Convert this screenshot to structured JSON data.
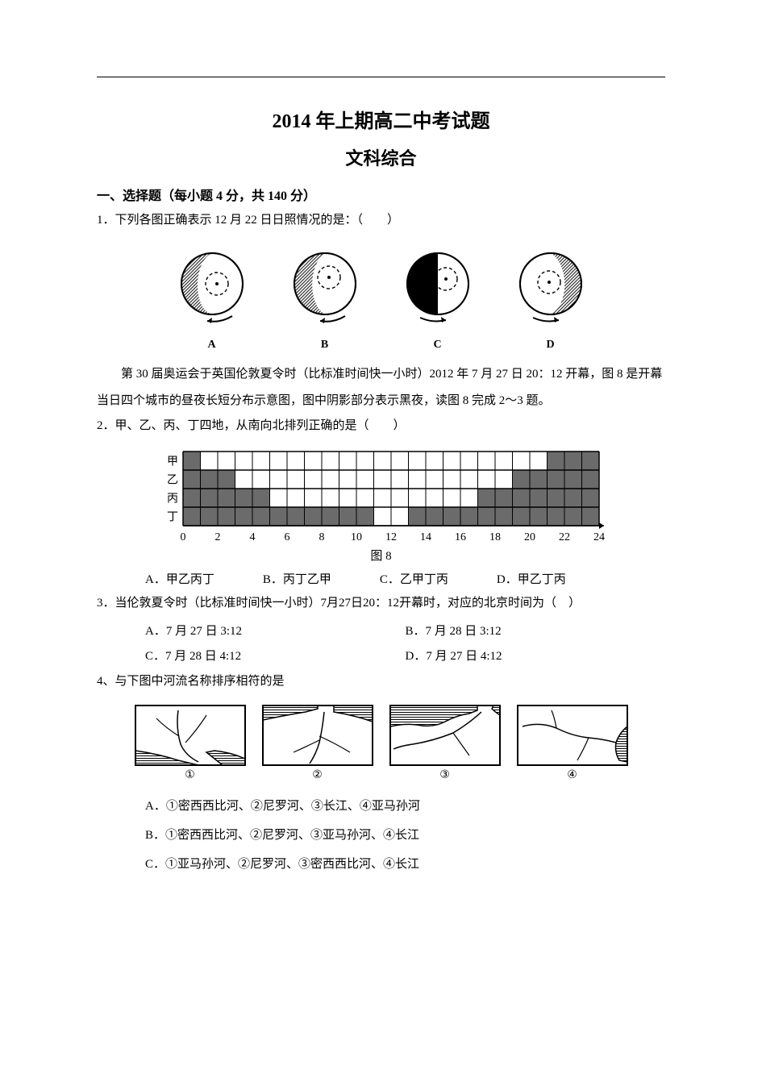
{
  "doc": {
    "title_main": "2014 年上期高二中考试题",
    "title_sub": "文科综合",
    "section_header": "一、选择题（每小题 4 分，共 140 分）",
    "q1": {
      "text": "1．下列各图正确表示 12 月 22 日日照情况的是：（　　）",
      "labels": [
        "A",
        "B",
        "C",
        "D"
      ]
    },
    "context2": "　　第 30 届奥运会于英国伦敦夏令时（比标准时间快一小时）2012 年 7 月 27 日 20：12 开幕，图 8 是开幕当日四个城市的昼夜长短分布示意图，图中阴影部分表示黑夜，读图 8 完成 2～3 题。",
    "q2": {
      "text": "2．甲、乙、丙、丁四地，从南向北排列正确的是（　　）",
      "options": [
        "A．甲乙丙丁",
        "B．丙丁乙甲",
        "C．乙甲丁丙",
        "D．甲乙丁丙"
      ]
    },
    "chart8": {
      "type": "bar",
      "rows": [
        "甲",
        "乙",
        "丙",
        "丁"
      ],
      "dark_ranges": [
        [
          [
            0,
            1
          ],
          [
            21,
            24
          ]
        ],
        [
          [
            0,
            3
          ],
          [
            19,
            24
          ]
        ],
        [
          [
            0,
            5
          ],
          [
            17,
            24
          ]
        ],
        [
          [
            0,
            11
          ],
          [
            13,
            24
          ]
        ]
      ],
      "xmin": 0,
      "xmax": 24,
      "xtick_step": 2,
      "colors": {
        "dark": "#6b6b6b",
        "light": "#ffffff",
        "line": "#000000",
        "row_label": "#000000"
      },
      "caption": "图 8"
    },
    "q3": {
      "text": "3．当伦敦夏令时（比标准时间快一小时）7月27日20：12开幕时，对应的北京时间为（　）",
      "options": [
        "A．7 月 27 日 3:12",
        "B．7 月 28 日 3:12",
        "C．7 月 28 日 4:12",
        "D．7 月 27 日 4:12"
      ]
    },
    "q4": {
      "text": "4、与下图中河流名称排序相符的是",
      "map_labels": [
        "①",
        "②",
        "③",
        "④"
      ],
      "options": [
        "A．①密西西比河、②尼罗河、③长江、④亚马孙河",
        "B．①密西西比河、②尼罗河、③亚马孙河、④长江",
        "C．①亚马孙河、②尼罗河、③密西西比河、④长江"
      ]
    },
    "globes": {
      "circle_stroke": "#000000",
      "bg": "#ffffff",
      "hatch": "#333333",
      "dash": "4,3"
    },
    "maps": {
      "stroke": "#000000",
      "water_hatch": "#000000"
    }
  }
}
